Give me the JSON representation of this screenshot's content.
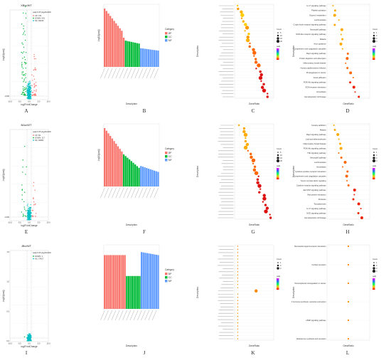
{
  "volcano": [
    {
      "letter": "A",
      "title": "XBtx/WT",
      "xlabel": "log2FoldChange",
      "ylabel": "-log10(padj)",
      "legend_title": "padj<0.05 |log2FoldChange|>0.58",
      "legend": [
        "UP: 374",
        "DOWN: 641",
        "NS: 36235"
      ],
      "yticks": [
        "1,000"
      ],
      "xticks": [
        "-10.0",
        "-5.0",
        "0.0",
        "5.0",
        "10.0"
      ]
    },
    {
      "letter": "E",
      "title": "BAo/WT",
      "xlabel": "log2FoldChange",
      "ylabel": "-log10(padj)",
      "legend_title": "padj<0.05 |log2FoldChange|>0.58",
      "legend": [
        "UP: 83",
        "DOWN: 117",
        "NS: 36082"
      ],
      "yticks": [
        "1,000"
      ],
      "xticks": [
        "-10.0",
        "-5.0",
        "0.0",
        "5.0",
        "10.0"
      ]
    },
    {
      "letter": "I",
      "title": "JBo/WT",
      "xlabel": "log2FoldChange",
      "ylabel": "-log10(padj)",
      "legend_title": "padj<0.05 |log2FoldChange|>0.58",
      "legend": [
        "DOWN: 1",
        "NS: 37427"
      ],
      "yticks": [
        "1.5",
        "1.0",
        "0.5",
        "0.0"
      ],
      "xticks": [
        "-10.0",
        "-5.0",
        "0.0",
        "5.0",
        "10.0"
      ]
    }
  ],
  "go_bars": [
    {
      "letter": "B",
      "xlabel": "Description",
      "ylabel": "-log10(padj)",
      "legend_title": "Category",
      "legend": [
        "BP",
        "CC",
        "MF"
      ]
    },
    {
      "letter": "F",
      "xlabel": "Description",
      "ylabel": "-log10(padj)",
      "legend_title": "Category",
      "legend": [
        "BP",
        "CC",
        "MF"
      ]
    },
    {
      "letter": "J",
      "xlabel": "Description",
      "ylabel": "",
      "legend_title": "Category",
      "legend": [
        "BP",
        "CC",
        "MF"
      ]
    }
  ],
  "go_dots": [
    {
      "letter": "C",
      "xlabel": "GeneRatio",
      "ylabel": "Description",
      "count_title": "Count",
      "count_items": [
        "5",
        "10",
        "15",
        "20"
      ],
      "padj_title": "padj"
    },
    {
      "letter": "G",
      "xlabel": "GeneRatio",
      "ylabel": "Description",
      "count_title": "Count",
      "count_items": [
        "5",
        "10",
        "15",
        "20"
      ],
      "padj_title": "padj"
    },
    {
      "letter": "K",
      "xlabel": "GeneRatio",
      "ylabel": "Description",
      "count_title": "Count",
      "count_items": [
        "1",
        "2",
        "3"
      ],
      "padj_title": "padj"
    }
  ],
  "kegg": [
    {
      "letter": "D",
      "xlabel": "GeneRatio",
      "ylabel": "Description",
      "count_title": "Count",
      "padj_title": "padj",
      "terms": [
        "IL-17 signaling pathway",
        "Platelet activation",
        "Glycerol metabolism",
        "Leishmaniasis",
        "C-type lectin receptor signaling pathway",
        "Neutrophil pathway",
        "NOD-like receptor signaling pathway",
        "Malaria",
        "Axon guidance",
        "Complement and coagulation cascades",
        "Rap1 signaling pathway",
        "Protein digestion and absorption",
        "Inflammatory bowel disease",
        "Human papillomavirus infection",
        "Proteoglycans in cancer",
        "Focal adhesion",
        "PI3K-Akt signaling pathway",
        "ECM-receptor interaction",
        "Amoebiasis",
        "Hematopoietic cell lineage"
      ]
    },
    {
      "letter": "H",
      "xlabel": "GeneRatio",
      "ylabel": "Description",
      "count_title": "Count",
      "padj_title": "padj",
      "terms": [
        "Cocaine addiction",
        "Malaria",
        "Rap1 signaling pathway",
        "Lipid and atherosclerosis",
        "Inflammatory bowel disease",
        "PI3K-Akt signaling pathway",
        "TNF signaling pathway",
        "Neutrophil pathway",
        "Leishmaniasis",
        "Amoebiasis",
        "Cytokine-cytokine receptor interaction",
        "Complement and coagulation cascades",
        "Tumor necrosis factor signaling",
        "Cytokine receptor signaling pathway",
        "Jak-STAT signaling pathway",
        "Viral protein interaction",
        "Pertussis",
        "Toxoplasmosis",
        "IL-17 signaling pathway",
        "NOD signaling pathway",
        "Hematopoietic cell lineage"
      ]
    },
    {
      "letter": "L",
      "xlabel": "GeneRatio",
      "ylabel": "Description",
      "count_title": "Count",
      "padj_title": "padj",
      "terms": [
        "Neuroactive ligand-receptor interaction",
        "Cortisol secretion",
        "Transcriptional misregulation in cancer",
        "Growth hormone synthesis, secretion and action",
        "cAMP signaling pathway",
        "Aldosterone synthesis and secretion"
      ]
    }
  ],
  "colors": {
    "up": "#f8766d",
    "down": "#00ba38",
    "ns": "#00bfc4",
    "bp": "#f8766d",
    "cc": "#00ba38",
    "mf": "#619cff"
  },
  "chart_data": [
    {
      "type": "scatter",
      "panel": "A",
      "series": [
        {
          "name": "UP: 374"
        },
        {
          "name": "DOWN: 641"
        },
        {
          "name": "NS: 36235"
        }
      ]
    },
    {
      "type": "bar",
      "panel": "B",
      "series": [
        {
          "name": "BP"
        },
        {
          "name": "CC"
        },
        {
          "name": "MF"
        }
      ]
    },
    {
      "type": "scatter",
      "panel": "C"
    },
    {
      "type": "scatter",
      "panel": "D"
    },
    {
      "type": "scatter",
      "panel": "E",
      "series": [
        {
          "name": "UP: 83"
        },
        {
          "name": "DOWN: 117"
        },
        {
          "name": "NS: 36082"
        }
      ]
    },
    {
      "type": "bar",
      "panel": "F",
      "series": [
        {
          "name": "BP"
        },
        {
          "name": "CC"
        },
        {
          "name": "MF"
        }
      ]
    },
    {
      "type": "scatter",
      "panel": "G"
    },
    {
      "type": "scatter",
      "panel": "H"
    },
    {
      "type": "scatter",
      "panel": "I",
      "series": [
        {
          "name": "DOWN: 1"
        },
        {
          "name": "NS: 37427"
        }
      ]
    },
    {
      "type": "bar",
      "panel": "J",
      "series": [
        {
          "name": "BP"
        },
        {
          "name": "CC"
        },
        {
          "name": "MF"
        }
      ]
    },
    {
      "type": "scatter",
      "panel": "K"
    },
    {
      "type": "scatter",
      "panel": "L"
    }
  ]
}
